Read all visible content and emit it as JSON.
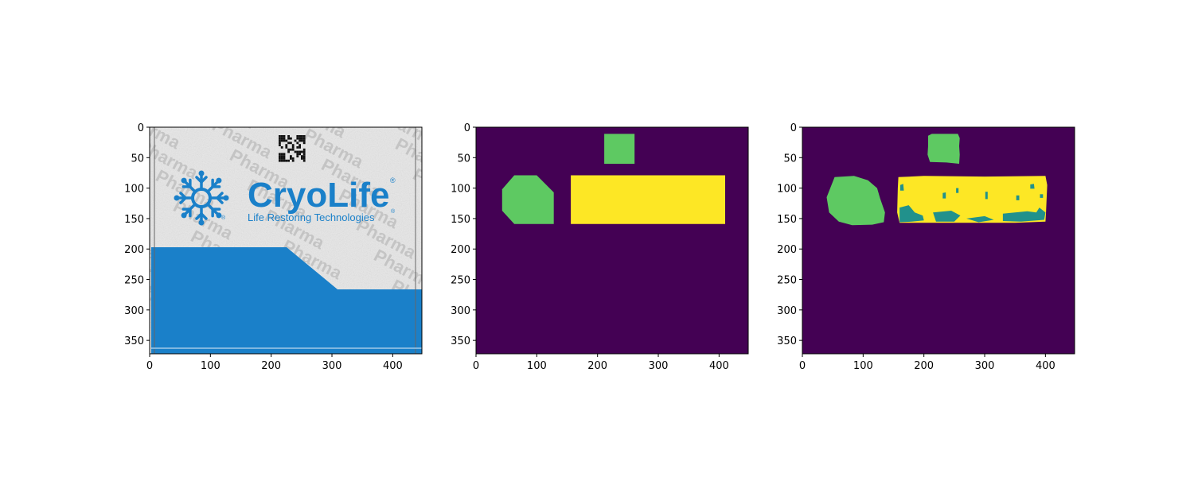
{
  "figure": {
    "background": "#ffffff",
    "colors": {
      "viridis_background": "#440154",
      "viridis_teal": "#21918c",
      "viridis_green": "#5ec962",
      "viridis_yellow": "#fde725",
      "package_blue": "#1a80c9",
      "package_paper": "#e7e7e7",
      "watermark_gray": "#bdbdbd"
    }
  },
  "package_image": {
    "brand": "CryoLife",
    "registered_mark": "®",
    "tagline": "Life Restoring Technologies",
    "watermark": "Pharma"
  },
  "chart_data": [
    {
      "type": "heatmap",
      "title": "",
      "content": "photo",
      "xlim": [
        0,
        448
      ],
      "ylim": [
        372,
        0
      ],
      "xticks": [
        0,
        100,
        200,
        300,
        400
      ],
      "yticks": [
        0,
        50,
        100,
        150,
        200,
        250,
        300,
        350
      ],
      "xlabel": "",
      "ylabel": ""
    },
    {
      "type": "heatmap",
      "title": "",
      "content": "ground-truth mask",
      "xlim": [
        0,
        448
      ],
      "ylim": [
        372,
        0
      ],
      "xticks": [
        0,
        100,
        200,
        300,
        400
      ],
      "yticks": [
        0,
        50,
        100,
        150,
        200,
        250,
        300,
        350
      ],
      "xlabel": "",
      "ylabel": "",
      "regions": [
        {
          "label": "qr-code",
          "class": 2,
          "points": [
            [
              211,
              11
            ],
            [
              261,
              11
            ],
            [
              261,
              60
            ],
            [
              211,
              60
            ]
          ]
        },
        {
          "label": "logo",
          "class": 2,
          "points": [
            [
              63,
              79
            ],
            [
              100,
              79
            ],
            [
              128,
              107
            ],
            [
              128,
              159
            ],
            [
              63,
              159
            ],
            [
              43,
              137
            ],
            [
              43,
              102
            ]
          ]
        },
        {
          "label": "text",
          "class": 3,
          "points": [
            [
              156,
              79
            ],
            [
              410,
              79
            ],
            [
              410,
              159
            ],
            [
              156,
              159
            ]
          ]
        }
      ]
    },
    {
      "type": "heatmap",
      "title": "",
      "content": "predicted mask",
      "xlim": [
        0,
        448
      ],
      "ylim": [
        372,
        0
      ],
      "xticks": [
        0,
        100,
        200,
        300,
        400
      ],
      "yticks": [
        0,
        50,
        100,
        150,
        200,
        250,
        300,
        350
      ],
      "xlabel": "",
      "ylabel": "",
      "regions": [
        {
          "label": "qr-code",
          "class": 2,
          "points": [
            [
              207,
              14
            ],
            [
              213,
              11
            ],
            [
              256,
              11
            ],
            [
              259,
              18
            ],
            [
              258,
              31
            ],
            [
              259,
              45
            ],
            [
              258,
              60
            ],
            [
              237,
              58
            ],
            [
              210,
              57
            ],
            [
              206,
              45
            ],
            [
              207,
              30
            ]
          ]
        },
        {
          "label": "logo",
          "class": 2,
          "points": [
            [
              53,
              82
            ],
            [
              85,
              80
            ],
            [
              108,
              87
            ],
            [
              123,
              100
            ],
            [
              128,
              117
            ],
            [
              136,
              140
            ],
            [
              134,
              156
            ],
            [
              115,
              160
            ],
            [
              82,
              161
            ],
            [
              60,
              155
            ],
            [
              44,
              140
            ],
            [
              40,
              115
            ]
          ]
        },
        {
          "label": "text",
          "class": 3,
          "points": [
            [
              158,
              82
            ],
            [
              200,
              80
            ],
            [
              300,
              81
            ],
            [
              400,
              80
            ],
            [
              403,
              95
            ],
            [
              401,
              140
            ],
            [
              400,
              155
            ],
            [
              350,
              157
            ],
            [
              250,
              157
            ],
            [
              160,
              157
            ],
            [
              156,
              140
            ],
            [
              157,
              100
            ]
          ]
        },
        {
          "label": "text-defect",
          "class": 1,
          "points": [
            [
              160,
              132
            ],
            [
              175,
              128
            ],
            [
              185,
              140
            ],
            [
              198,
              145
            ],
            [
              200,
              153
            ],
            [
              180,
              155
            ],
            [
              160,
              156
            ]
          ]
        },
        {
          "label": "text-defect",
          "class": 1,
          "points": [
            [
              215,
              140
            ],
            [
              245,
              137
            ],
            [
              260,
              145
            ],
            [
              250,
              155
            ],
            [
              220,
              155
            ]
          ]
        },
        {
          "label": "text-defect",
          "class": 1,
          "points": [
            [
              330,
              142
            ],
            [
              370,
              138
            ],
            [
              385,
              140
            ],
            [
              390,
              132
            ],
            [
              400,
              140
            ],
            [
              398,
              152
            ],
            [
              360,
              155
            ],
            [
              330,
              154
            ]
          ]
        },
        {
          "label": "text-defect",
          "class": 1,
          "points": [
            [
              270,
              150
            ],
            [
              300,
              146
            ],
            [
              315,
              152
            ],
            [
              290,
              156
            ]
          ]
        },
        {
          "label": "text-defect",
          "class": 1,
          "points": [
            [
              161,
              95
            ],
            [
              166,
              93
            ],
            [
              167,
              104
            ],
            [
              161,
              104
            ]
          ]
        },
        {
          "label": "text-defect",
          "class": 1,
          "points": [
            [
              231,
              108
            ],
            [
              236,
              107
            ],
            [
              236,
              117
            ],
            [
              231,
              117
            ]
          ]
        },
        {
          "label": "text-defect",
          "class": 1,
          "points": [
            [
              301,
              106
            ],
            [
              305,
              106
            ],
            [
              305,
              118
            ],
            [
              301,
              118
            ]
          ]
        },
        {
          "label": "text-defect",
          "class": 1,
          "points": [
            [
              253,
              100
            ],
            [
              257,
              100
            ],
            [
              257,
              108
            ],
            [
              253,
              108
            ]
          ]
        },
        {
          "label": "text-defect",
          "class": 1,
          "points": [
            [
              375,
              94
            ],
            [
              381,
              93
            ],
            [
              382,
              101
            ],
            [
              375,
              101
            ]
          ]
        },
        {
          "label": "text-defect",
          "class": 1,
          "points": [
            [
              352,
              112
            ],
            [
              357,
              112
            ],
            [
              357,
              120
            ],
            [
              352,
              120
            ]
          ]
        },
        {
          "label": "text-defect",
          "class": 1,
          "points": [
            [
              391,
              110
            ],
            [
              396,
              110
            ],
            [
              396,
              116
            ],
            [
              391,
              116
            ]
          ]
        }
      ]
    }
  ]
}
